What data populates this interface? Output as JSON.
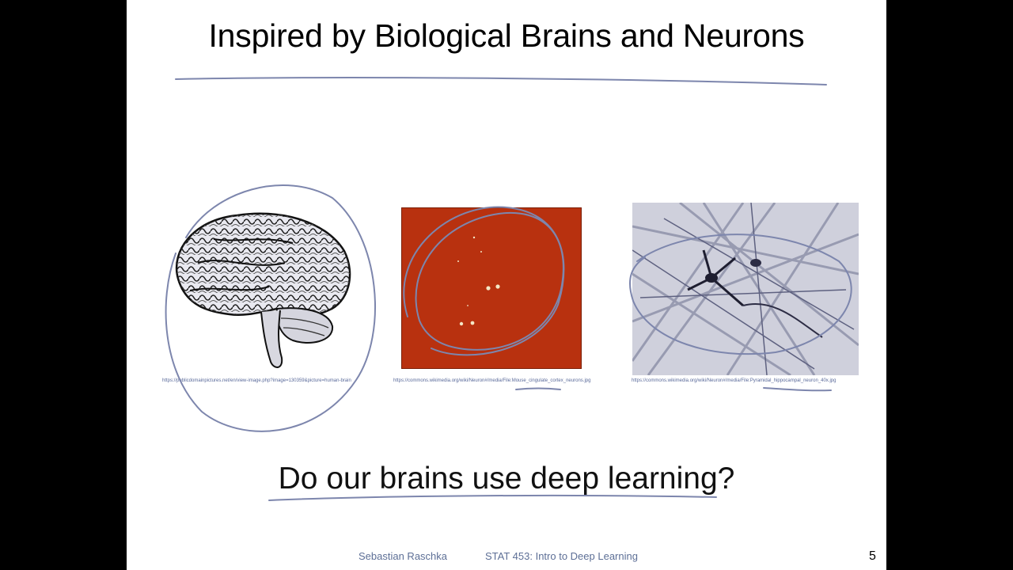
{
  "slide": {
    "title": "Inspired by Biological Brains and Neurons",
    "question": "Do our brains use deep learning?",
    "figures": [
      {
        "icon": "brain-illustration",
        "caption": "https://publicdomainpictures.net/en/view-image.php?image=130359&picture=human-brain"
      },
      {
        "icon": "mouse-cortex-neurons-micrograph",
        "caption": "https://commons.wikimedia.org/wiki/Neuron#/media/File:Mouse_cingulate_cortex_neurons.jpg"
      },
      {
        "icon": "pyramidal-neuron-micrograph",
        "caption": "https://commons.wikimedia.org/wiki/Neuron#/media/File:Pyramidal_hippocampal_neuron_40x.jpg"
      }
    ],
    "footer": {
      "author": "Sebastian Raschka",
      "course": "STAT 453: Intro to Deep Learning",
      "page": "5"
    },
    "colors": {
      "annotation_ink": "#7d86ad",
      "micrograph_red": "#b8310f",
      "footer_text": "#5d6f96"
    }
  }
}
